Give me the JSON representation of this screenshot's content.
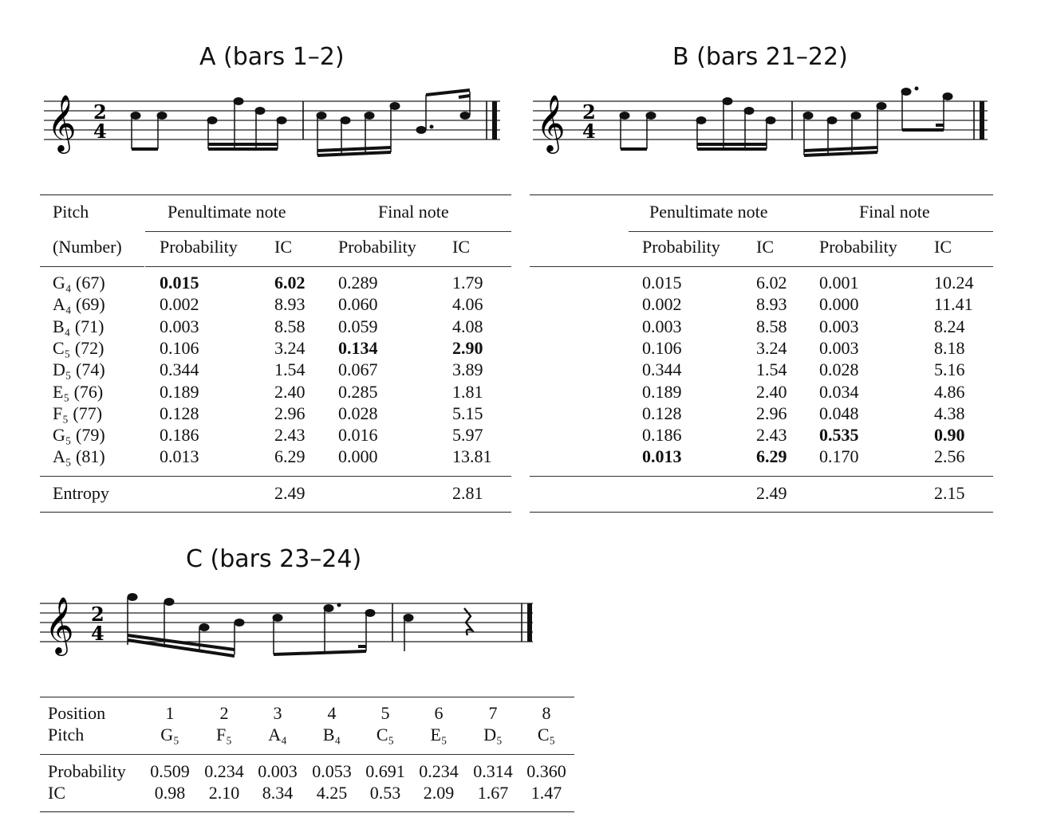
{
  "panel_a": {
    "title": "A (bars 1–2)",
    "header": {
      "pitch": "Pitch",
      "number": "(Number)",
      "penultimate": "Penultimate note",
      "final": "Final note",
      "probability": "Probability",
      "ic": "IC"
    },
    "rows": [
      {
        "pitch": "G₄ (67)",
        "pp": "0.015",
        "pic": "6.02",
        "fp": "0.289",
        "fic": "1.79",
        "bold_pen": true,
        "bold_fin": false
      },
      {
        "pitch": "A₄ (69)",
        "pp": "0.002",
        "pic": "8.93",
        "fp": "0.060",
        "fic": "4.06",
        "bold_pen": false,
        "bold_fin": false
      },
      {
        "pitch": "B₄ (71)",
        "pp": "0.003",
        "pic": "8.58",
        "fp": "0.059",
        "fic": "4.08",
        "bold_pen": false,
        "bold_fin": false
      },
      {
        "pitch": "C₅ (72)",
        "pp": "0.106",
        "pic": "3.24",
        "fp": "0.134",
        "fic": "2.90",
        "bold_pen": false,
        "bold_fin": true
      },
      {
        "pitch": "D₅ (74)",
        "pp": "0.344",
        "pic": "1.54",
        "fp": "0.067",
        "fic": "3.89",
        "bold_pen": false,
        "bold_fin": false
      },
      {
        "pitch": "E₅ (76)",
        "pp": "0.189",
        "pic": "2.40",
        "fp": "0.285",
        "fic": "1.81",
        "bold_pen": false,
        "bold_fin": false
      },
      {
        "pitch": "F₅ (77)",
        "pp": "0.128",
        "pic": "2.96",
        "fp": "0.028",
        "fic": "5.15",
        "bold_pen": false,
        "bold_fin": false
      },
      {
        "pitch": "G₅ (79)",
        "pp": "0.186",
        "pic": "2.43",
        "fp": "0.016",
        "fic": "5.97",
        "bold_pen": false,
        "bold_fin": false
      },
      {
        "pitch": "A₅ (81)",
        "pp": "0.013",
        "pic": "6.29",
        "fp": "0.000",
        "fic": "13.81",
        "bold_pen": false,
        "bold_fin": false
      }
    ],
    "entropy_label": "Entropy",
    "entropy_pen": "2.49",
    "entropy_fin": "2.81"
  },
  "panel_b": {
    "title": "B (bars 21–22)",
    "header": {
      "penultimate": "Penultimate note",
      "final": "Final note",
      "probability": "Probability",
      "ic": "IC"
    },
    "rows": [
      {
        "pp": "0.015",
        "pic": "6.02",
        "fp": "0.001",
        "fic": "10.24",
        "bold_pen": false,
        "bold_fin": false
      },
      {
        "pp": "0.002",
        "pic": "8.93",
        "fp": "0.000",
        "fic": "11.41",
        "bold_pen": false,
        "bold_fin": false
      },
      {
        "pp": "0.003",
        "pic": "8.58",
        "fp": "0.003",
        "fic": "8.24",
        "bold_pen": false,
        "bold_fin": false
      },
      {
        "pp": "0.106",
        "pic": "3.24",
        "fp": "0.003",
        "fic": "8.18",
        "bold_pen": false,
        "bold_fin": false
      },
      {
        "pp": "0.344",
        "pic": "1.54",
        "fp": "0.028",
        "fic": "5.16",
        "bold_pen": false,
        "bold_fin": false
      },
      {
        "pp": "0.189",
        "pic": "2.40",
        "fp": "0.034",
        "fic": "4.86",
        "bold_pen": false,
        "bold_fin": false
      },
      {
        "pp": "0.128",
        "pic": "2.96",
        "fp": "0.048",
        "fic": "4.38",
        "bold_pen": false,
        "bold_fin": false
      },
      {
        "pp": "0.186",
        "pic": "2.43",
        "fp": "0.535",
        "fic": "0.90",
        "bold_pen": false,
        "bold_fin": true
      },
      {
        "pp": "0.013",
        "pic": "6.29",
        "fp": "0.170",
        "fic": "2.56",
        "bold_pen": true,
        "bold_fin": false
      }
    ],
    "entropy_pen": "2.49",
    "entropy_fin": "2.15"
  },
  "panel_c": {
    "title": "C (bars 23–24)",
    "position_label": "Position",
    "pitch_label": "Pitch",
    "probability_label": "Probability",
    "ic_label": "IC",
    "columns": [
      {
        "pos": "1",
        "pitch": "G₅",
        "prob": "0.509",
        "ic": "0.98"
      },
      {
        "pos": "2",
        "pitch": "F₅",
        "prob": "0.234",
        "ic": "2.10"
      },
      {
        "pos": "3",
        "pitch": "A₄",
        "prob": "0.003",
        "ic": "8.34"
      },
      {
        "pos": "4",
        "pitch": "B₄",
        "prob": "0.053",
        "ic": "4.25"
      },
      {
        "pos": "5",
        "pitch": "C₅",
        "prob": "0.691",
        "ic": "0.53"
      },
      {
        "pos": "6",
        "pitch": "E₅",
        "prob": "0.234",
        "ic": "2.09"
      },
      {
        "pos": "7",
        "pitch": "D₅",
        "prob": "0.314",
        "ic": "1.67"
      },
      {
        "pos": "8",
        "pitch": "C₅",
        "prob": "0.360",
        "ic": "1.47"
      }
    ]
  },
  "notation": {
    "time_signature_top": "2",
    "time_signature_bottom": "4",
    "clef": "treble-clef-icon"
  }
}
